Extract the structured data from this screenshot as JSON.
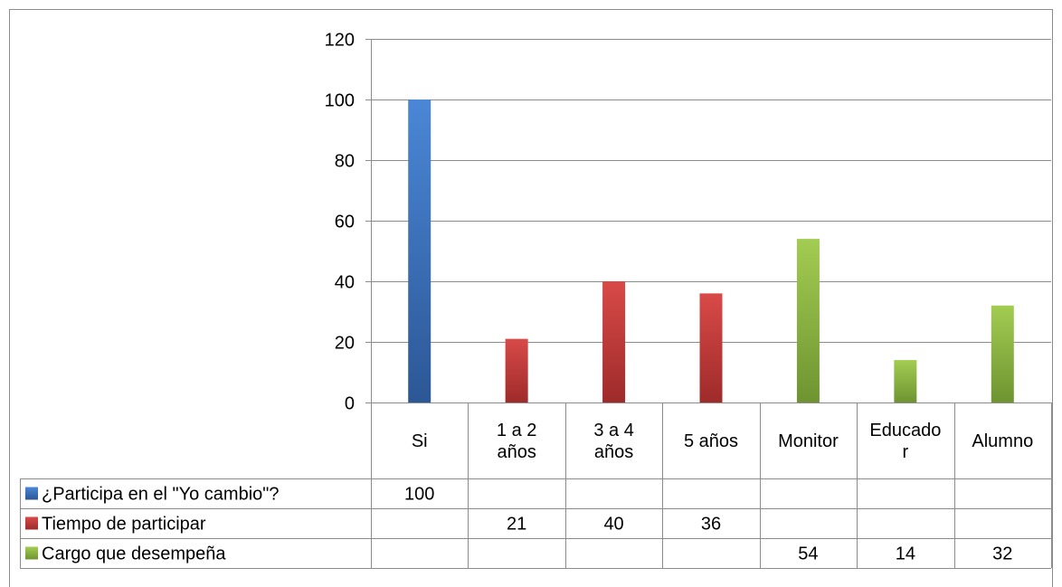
{
  "chart_data": {
    "type": "bar",
    "categories": [
      [
        "Si"
      ],
      [
        "1 a 2",
        "años"
      ],
      [
        "3 a 4",
        "años"
      ],
      [
        "5 años"
      ],
      [
        "Monitor"
      ],
      [
        "Educado",
        "r"
      ],
      [
        "Alumno"
      ]
    ],
    "ylim": [
      0,
      120
    ],
    "yticks": [
      0,
      20,
      40,
      60,
      80,
      100,
      120
    ],
    "grid": true,
    "legend": "data-table",
    "series": [
      {
        "name": "¿Participa en el \"Yo cambio\"?",
        "color": "#3366b8",
        "values": [
          100,
          null,
          null,
          null,
          null,
          null,
          null
        ]
      },
      {
        "name": "Tiempo de participar",
        "color": "#c0393a",
        "values": [
          null,
          21,
          40,
          36,
          null,
          null,
          null
        ]
      },
      {
        "name": "Cargo que desempeña",
        "color": "#8ab43e",
        "values": [
          null,
          null,
          null,
          null,
          54,
          14,
          32
        ]
      }
    ]
  }
}
